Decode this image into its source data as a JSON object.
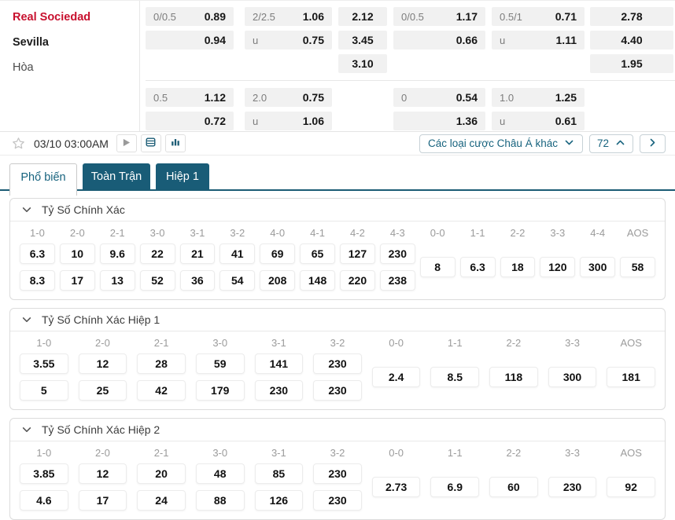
{
  "colors": {
    "accent_teal": "#195c77",
    "home_team_red": "#c8102e",
    "odds_cell_bg": "#f1f1f1"
  },
  "match": {
    "home": "Real Sociedad",
    "away": "Sevilla",
    "draw": "Hòa"
  },
  "odds_table": {
    "blocks": [
      {
        "columns": [
          {
            "type": "pair",
            "cells": [
              [
                "0/0.5",
                "0.89"
              ],
              [
                "",
                "0.94"
              ]
            ]
          },
          {
            "type": "pair",
            "cells": [
              [
                "2/2.5",
                "1.06"
              ],
              [
                "u",
                "0.75"
              ]
            ]
          },
          {
            "type": "single",
            "cells": [
              "2.12",
              "3.45",
              "3.10"
            ]
          },
          {
            "type": "pair",
            "cells": [
              [
                "0/0.5",
                "1.17"
              ],
              [
                "",
                "0.66"
              ]
            ]
          },
          {
            "type": "pair",
            "cells": [
              [
                "0.5/1",
                "0.71"
              ],
              [
                "u",
                "1.11"
              ]
            ]
          },
          {
            "type": "single",
            "cells": [
              "2.78",
              "4.40",
              "1.95"
            ]
          }
        ]
      },
      {
        "columns": [
          {
            "type": "pair",
            "cells": [
              [
                "0.5",
                "1.12"
              ],
              [
                "",
                "0.72"
              ]
            ]
          },
          {
            "type": "pair",
            "cells": [
              [
                "2.0",
                "0.75"
              ],
              [
                "u",
                "1.06"
              ]
            ]
          },
          {
            "type": "single",
            "cells": []
          },
          {
            "type": "pair",
            "cells": [
              [
                "0",
                "0.54"
              ],
              [
                "",
                "1.36"
              ]
            ]
          },
          {
            "type": "pair",
            "cells": [
              [
                "1.0",
                "1.25"
              ],
              [
                "u",
                "0.61"
              ]
            ]
          },
          {
            "type": "single",
            "cells": []
          }
        ]
      }
    ]
  },
  "toolbar": {
    "time": "03/10 03:00AM",
    "dropdown_label": "Các loại cược Châu Á khác",
    "count": "72"
  },
  "tabs": [
    {
      "label": "Phổ biến",
      "active": true
    },
    {
      "label": "Toàn Trận",
      "active": false
    },
    {
      "label": "Hiệp 1",
      "active": false
    }
  ],
  "sections": [
    {
      "title": "Tỷ Số Chính Xác",
      "columns": [
        {
          "score": "1-0",
          "odds": [
            "6.3",
            "8.3"
          ]
        },
        {
          "score": "2-0",
          "odds": [
            "10",
            "17"
          ]
        },
        {
          "score": "2-1",
          "odds": [
            "9.6",
            "13"
          ]
        },
        {
          "score": "3-0",
          "odds": [
            "22",
            "52"
          ]
        },
        {
          "score": "3-1",
          "odds": [
            "21",
            "36"
          ]
        },
        {
          "score": "3-2",
          "odds": [
            "41",
            "54"
          ]
        },
        {
          "score": "4-0",
          "odds": [
            "69",
            "208"
          ]
        },
        {
          "score": "4-1",
          "odds": [
            "65",
            "148"
          ]
        },
        {
          "score": "4-2",
          "odds": [
            "127",
            "220"
          ]
        },
        {
          "score": "4-3",
          "odds": [
            "230",
            "238"
          ]
        },
        {
          "score": "0-0",
          "odds": [
            "8"
          ]
        },
        {
          "score": "1-1",
          "odds": [
            "6.3"
          ]
        },
        {
          "score": "2-2",
          "odds": [
            "18"
          ]
        },
        {
          "score": "3-3",
          "odds": [
            "120"
          ]
        },
        {
          "score": "4-4",
          "odds": [
            "300"
          ]
        },
        {
          "score": "AOS",
          "odds": [
            "58"
          ]
        }
      ]
    },
    {
      "title": "Tỷ Số Chính Xác Hiệp 1",
      "columns": [
        {
          "score": "1-0",
          "odds": [
            "3.55",
            "5"
          ]
        },
        {
          "score": "2-0",
          "odds": [
            "12",
            "25"
          ]
        },
        {
          "score": "2-1",
          "odds": [
            "28",
            "42"
          ]
        },
        {
          "score": "3-0",
          "odds": [
            "59",
            "179"
          ]
        },
        {
          "score": "3-1",
          "odds": [
            "141",
            "230"
          ]
        },
        {
          "score": "3-2",
          "odds": [
            "230",
            "230"
          ]
        },
        {
          "score": "0-0",
          "odds": [
            "2.4"
          ]
        },
        {
          "score": "1-1",
          "odds": [
            "8.5"
          ]
        },
        {
          "score": "2-2",
          "odds": [
            "118"
          ]
        },
        {
          "score": "3-3",
          "odds": [
            "300"
          ]
        },
        {
          "score": "AOS",
          "odds": [
            "181"
          ]
        }
      ]
    },
    {
      "title": "Tỷ Số Chính Xác Hiệp 2",
      "columns": [
        {
          "score": "1-0",
          "odds": [
            "3.85",
            "4.6"
          ]
        },
        {
          "score": "2-0",
          "odds": [
            "12",
            "17"
          ]
        },
        {
          "score": "2-1",
          "odds": [
            "20",
            "24"
          ]
        },
        {
          "score": "3-0",
          "odds": [
            "48",
            "88"
          ]
        },
        {
          "score": "3-1",
          "odds": [
            "85",
            "126"
          ]
        },
        {
          "score": "3-2",
          "odds": [
            "230",
            "230"
          ]
        },
        {
          "score": "0-0",
          "odds": [
            "2.73"
          ]
        },
        {
          "score": "1-1",
          "odds": [
            "6.9"
          ]
        },
        {
          "score": "2-2",
          "odds": [
            "60"
          ]
        },
        {
          "score": "3-3",
          "odds": [
            "230"
          ]
        },
        {
          "score": "AOS",
          "odds": [
            "92"
          ]
        }
      ]
    }
  ]
}
